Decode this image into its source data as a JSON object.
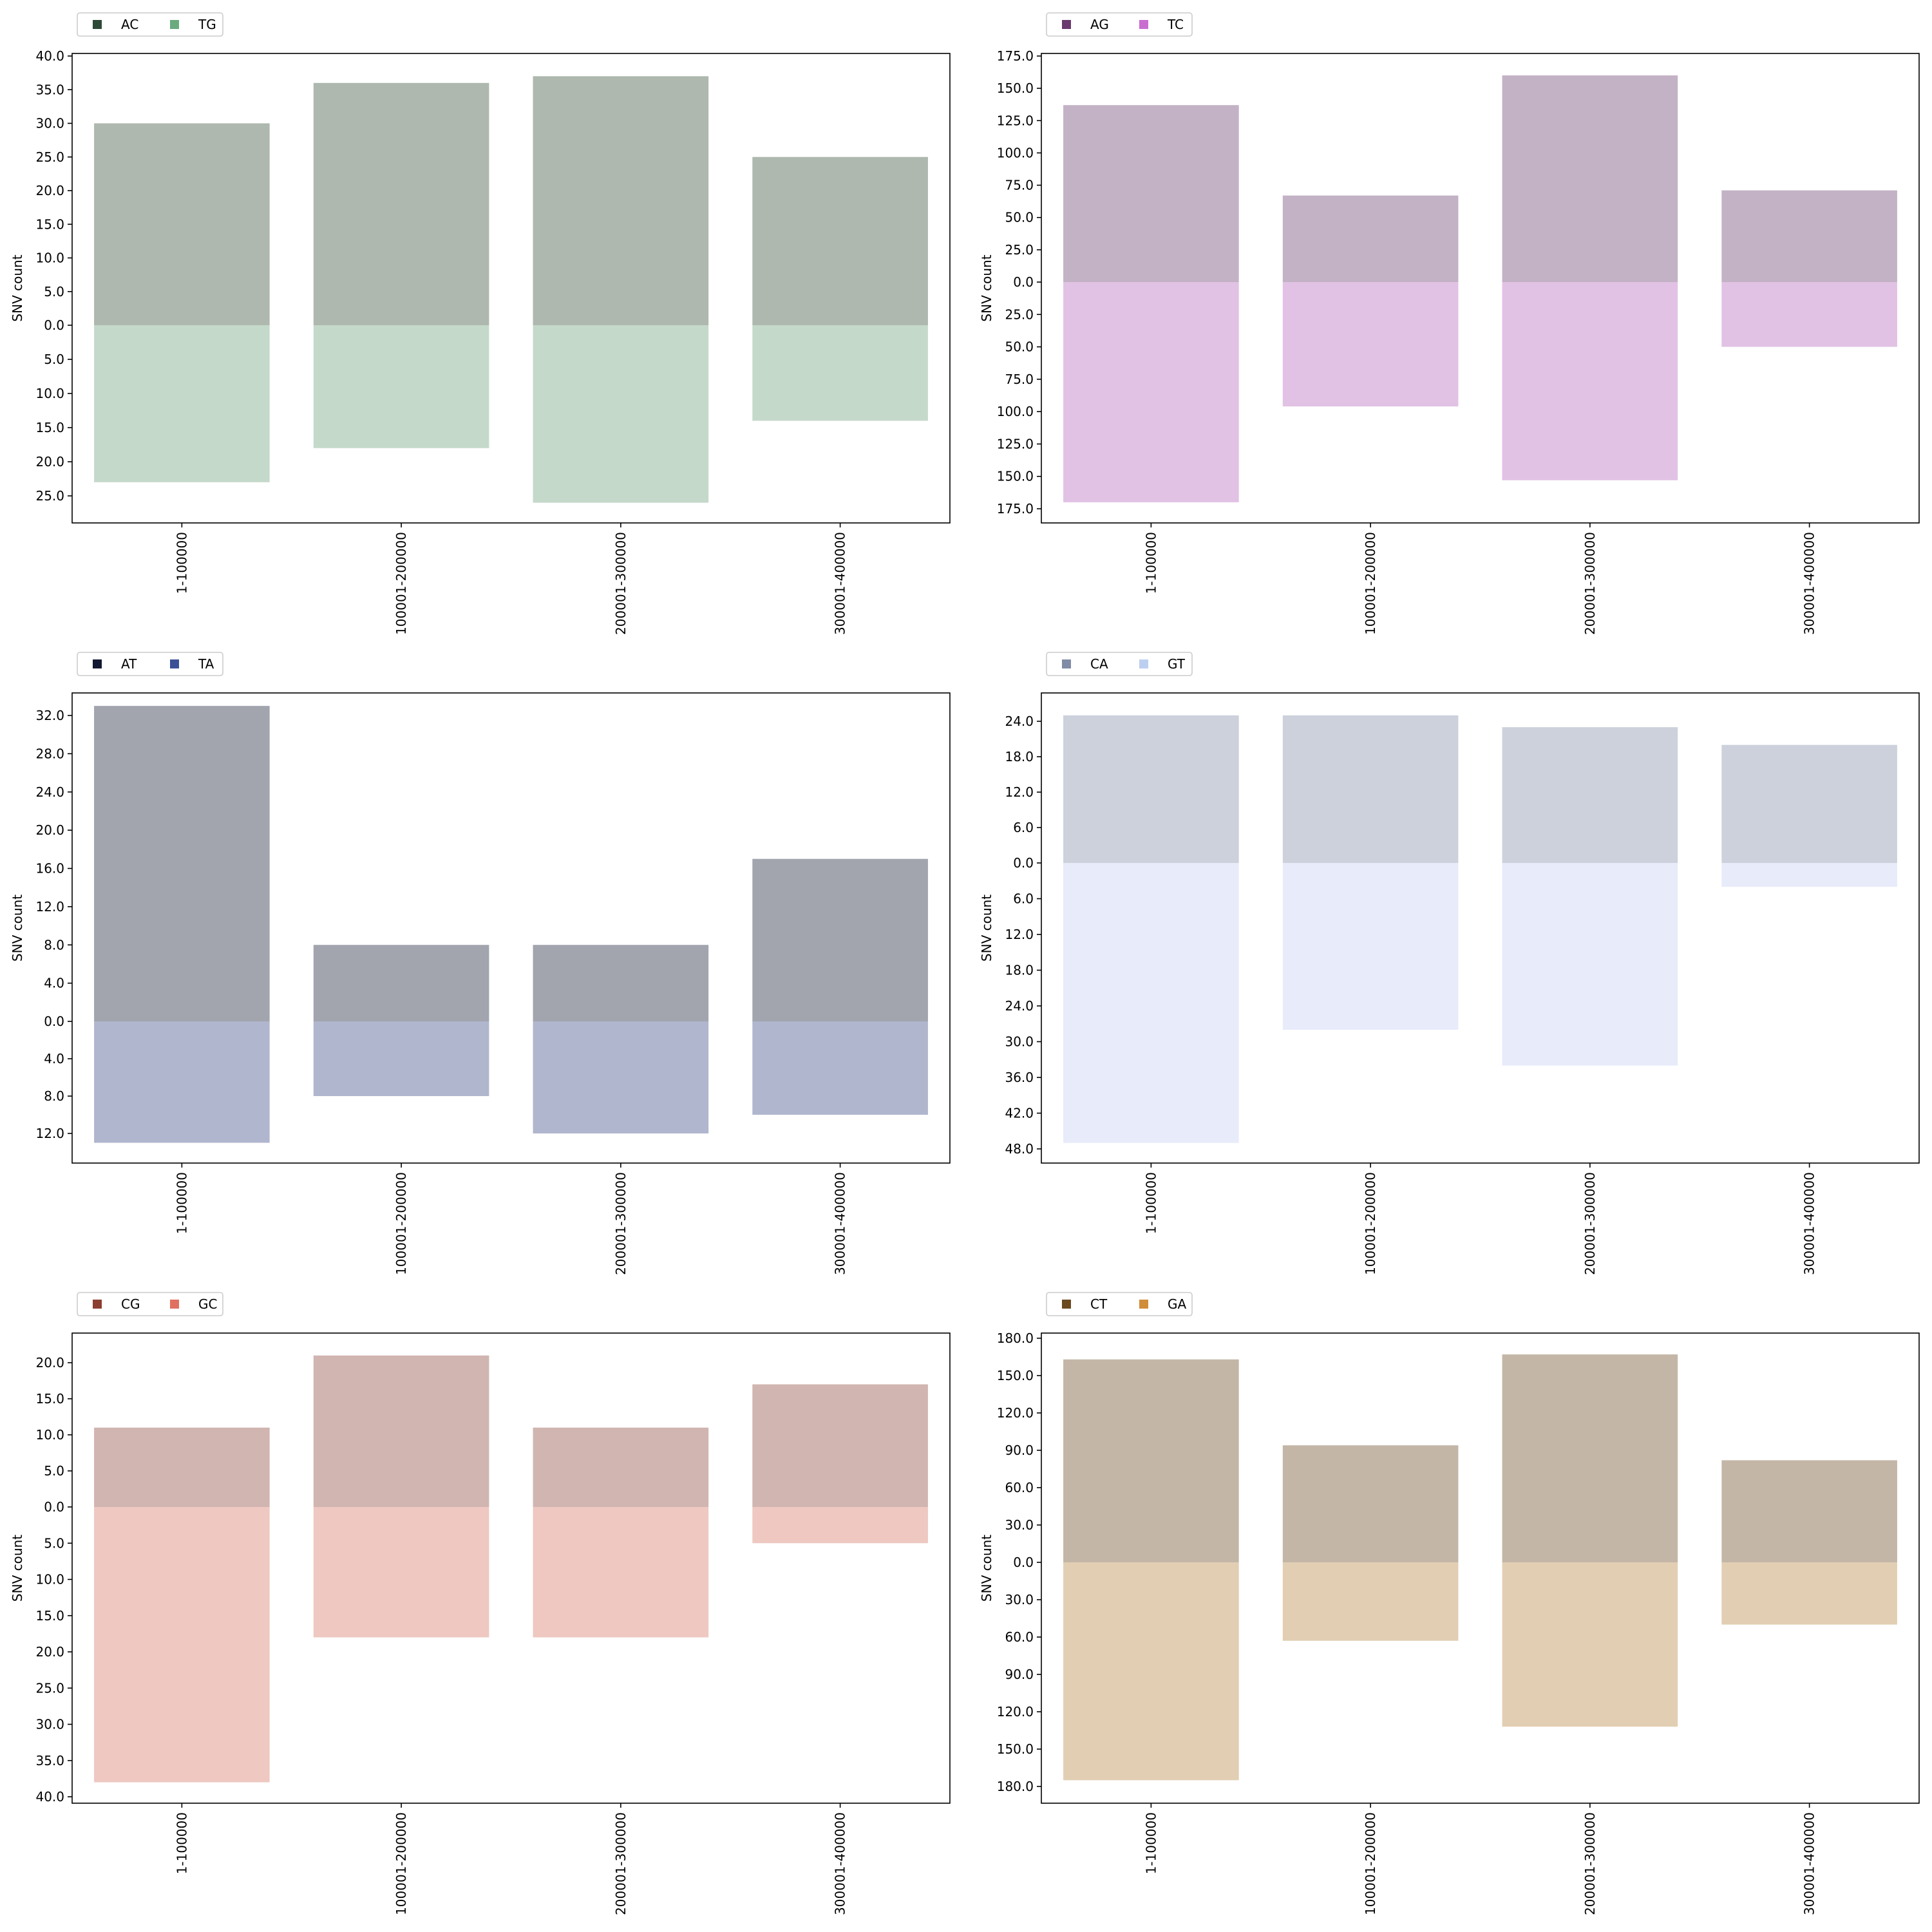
{
  "chart_data": [
    {
      "type": "bar",
      "categories": [
        "1-100000",
        "100001-200000",
        "200001-300000",
        "300001-400000"
      ],
      "ylabel": "SNV count",
      "legend_position": "top-left",
      "grid": false,
      "series": [
        {
          "name": "AC",
          "direction": "up",
          "values": [
            30,
            36,
            37,
            25
          ],
          "color": "#2d4a36",
          "fill": "#aeb8af"
        },
        {
          "name": "TG",
          "direction": "down",
          "values": [
            23,
            18,
            26,
            14
          ],
          "color": "#6aaa7e",
          "fill": "#c5d9ca"
        }
      ],
      "ylim_up": [
        0,
        40
      ],
      "ylim_down": [
        0,
        29
      ],
      "ticks_up": [
        "0.0",
        "5.0",
        "10.0",
        "15.0",
        "20.0",
        "25.0",
        "30.0",
        "35.0",
        "40.0"
      ],
      "ticks_down": [
        "5.0",
        "10.0",
        "15.0",
        "20.0",
        "25.0"
      ]
    },
    {
      "type": "bar",
      "categories": [
        "1-100000",
        "100001-200000",
        "200001-300000",
        "300001-400000"
      ],
      "ylabel": "SNV count",
      "legend_position": "top-left",
      "grid": false,
      "series": [
        {
          "name": "AG",
          "direction": "up",
          "values": [
            137,
            67,
            160,
            71
          ],
          "color": "#6a3a6e",
          "fill": "#c3b1c6"
        },
        {
          "name": "TC",
          "direction": "down",
          "values": [
            170,
            96,
            153,
            50
          ],
          "color": "#c96ed0",
          "fill": "#e1c2e4"
        }
      ],
      "ylim_up": [
        0,
        175
      ],
      "ylim_down": [
        0,
        185
      ],
      "ticks_up": [
        "0.0",
        "25.0",
        "50.0",
        "75.0",
        "100.0",
        "125.0",
        "150.0",
        "175.0"
      ],
      "ticks_down": [
        "25.0",
        "50.0",
        "75.0",
        "100.0",
        "125.0",
        "150.0",
        "175.0"
      ]
    },
    {
      "type": "bar",
      "categories": [
        "1-100000",
        "100001-200000",
        "200001-300000",
        "300001-400000"
      ],
      "ylabel": "SNV count",
      "legend_position": "top-left",
      "grid": false,
      "series": [
        {
          "name": "AT",
          "direction": "up",
          "values": [
            33,
            8,
            8,
            17
          ],
          "color": "#121a33",
          "fill": "#a2a4ae"
        },
        {
          "name": "TA",
          "direction": "down",
          "values": [
            13,
            8,
            12,
            10
          ],
          "color": "#3b4f96",
          "fill": "#b0b6cd"
        }
      ],
      "ylim_up": [
        0,
        33
      ],
      "ylim_down": [
        0,
        15
      ],
      "ticks_up": [
        "0.0",
        "4.0",
        "8.0",
        "12.0",
        "16.0",
        "20.0",
        "24.0",
        "28.0",
        "32.0"
      ],
      "ticks_down": [
        "4.0",
        "8.0",
        "12.0"
      ]
    },
    {
      "type": "bar",
      "categories": [
        "1-100000",
        "100001-200000",
        "200001-300000",
        "300001-400000"
      ],
      "ylabel": "SNV count",
      "legend_position": "top-left",
      "grid": false,
      "series": [
        {
          "name": "CA",
          "direction": "up",
          "values": [
            25,
            25,
            23,
            20
          ],
          "color": "#808ba6",
          "fill": "#ccd1dc"
        },
        {
          "name": "GT",
          "direction": "down",
          "values": [
            47,
            28,
            34,
            4
          ],
          "color": "#bccff0",
          "fill": "#e8ebfa"
        }
      ],
      "ylim_up": [
        0,
        24
      ],
      "ylim_down": [
        0,
        48
      ],
      "ticks_up": [
        "0.0",
        "6.0",
        "12.0",
        "18.0",
        "24.0"
      ],
      "ticks_down": [
        "6.0",
        "12.0",
        "18.0",
        "24.0",
        "30.0",
        "36.0",
        "42.0",
        "48.0"
      ]
    },
    {
      "type": "bar",
      "categories": [
        "1-100000",
        "100001-200000",
        "200001-300000",
        "300001-400000"
      ],
      "ylabel": "SNV count",
      "legend_position": "top-left",
      "grid": false,
      "series": [
        {
          "name": "CG",
          "direction": "up",
          "values": [
            11,
            21,
            11,
            17
          ],
          "color": "#8c3e30",
          "fill": "#d1b5b0"
        },
        {
          "name": "GC",
          "direction": "down",
          "values": [
            38,
            18,
            18,
            5
          ],
          "color": "#e07060",
          "fill": "#eec8c1"
        }
      ],
      "ylim_up": [
        0,
        24
      ],
      "ylim_down": [
        0,
        41
      ],
      "ticks_up": [
        "0.0",
        "5.0",
        "10.0",
        "15.0",
        "20.0"
      ],
      "ticks_down": [
        "5.0",
        "10.0",
        "15.0",
        "20.0",
        "25.0",
        "30.0",
        "35.0",
        "40.0"
      ]
    },
    {
      "type": "bar",
      "categories": [
        "1-100000",
        "100001-200000",
        "200001-300000",
        "300001-400000"
      ],
      "ylabel": "SNV count",
      "legend_position": "top-left",
      "grid": false,
      "series": [
        {
          "name": "CT",
          "direction": "up",
          "values": [
            163,
            94,
            167,
            82
          ],
          "color": "#6b4a1f",
          "fill": "#c4b6a6"
        },
        {
          "name": "GA",
          "direction": "down",
          "values": [
            175,
            63,
            132,
            50
          ],
          "color": "#d18c3a",
          "fill": "#e2cfb3"
        }
      ],
      "ylim_up": [
        0,
        180
      ],
      "ylim_down": [
        0,
        190
      ],
      "ticks_up": [
        "0.0",
        "30.0",
        "60.0",
        "90.0",
        "120.0",
        "150.0",
        "180.0"
      ],
      "ticks_down": [
        "30.0",
        "60.0",
        "90.0",
        "120.0",
        "150.0",
        "180.0"
      ]
    }
  ]
}
